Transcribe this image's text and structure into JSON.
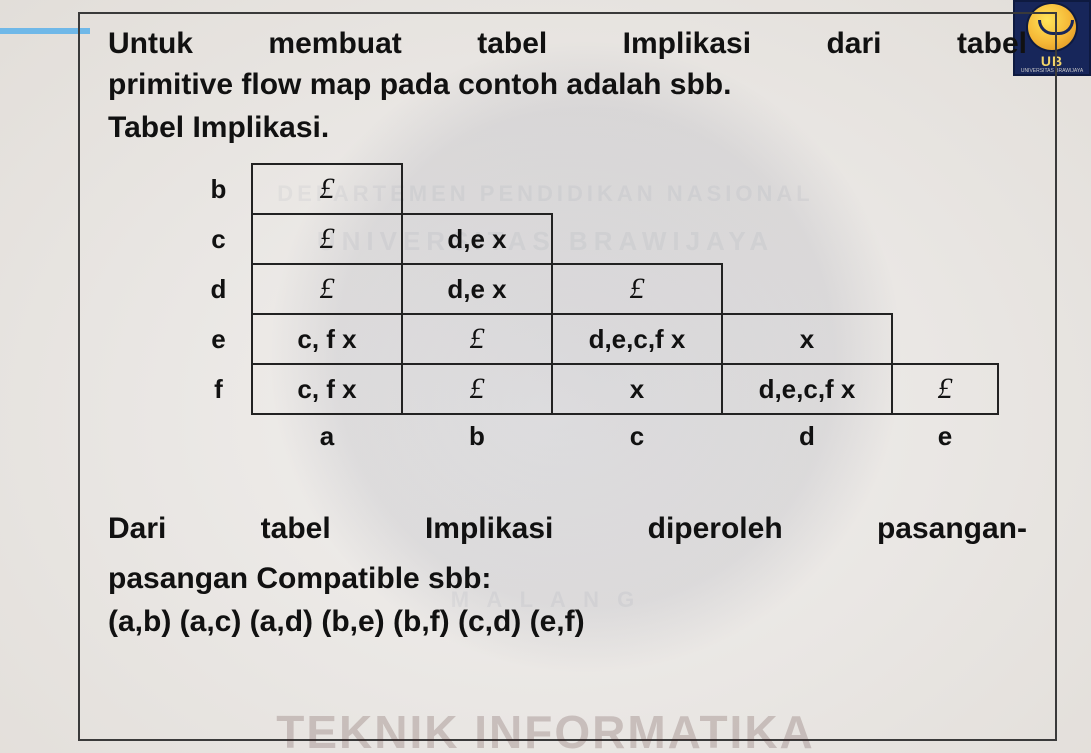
{
  "accent_color": "#6fb8e8",
  "border_color": "#3a3a3a",
  "heading": {
    "line1_words": [
      "Untuk",
      "membuat",
      "tabel",
      "Implikasi",
      "dari",
      "tabel"
    ],
    "line2": "primitive flow map pada contoh adalah sbb."
  },
  "subheading": "Tabel Implikasi.",
  "table": {
    "row_labels": [
      "b",
      "c",
      "d",
      "e",
      "f"
    ],
    "col_labels": [
      "a",
      "b",
      "c",
      "d",
      "e"
    ],
    "check_symbol": "£",
    "rows": [
      [
        {
          "type": "check"
        }
      ],
      [
        {
          "type": "check"
        },
        {
          "type": "text",
          "val": "d,e x"
        }
      ],
      [
        {
          "type": "check"
        },
        {
          "type": "text",
          "val": "d,e x"
        },
        {
          "type": "check"
        }
      ],
      [
        {
          "type": "text",
          "val": "c, f x"
        },
        {
          "type": "check"
        },
        {
          "type": "text",
          "val": "d,e,c,f x"
        },
        {
          "type": "text",
          "val": "x"
        }
      ],
      [
        {
          "type": "text",
          "val": "c, f x"
        },
        {
          "type": "check"
        },
        {
          "type": "text",
          "val": "x"
        },
        {
          "type": "text",
          "val": "d,e,c,f x"
        },
        {
          "type": "check"
        }
      ]
    ],
    "col_widths_class": [
      "w-a",
      "w-b",
      "w-c",
      "w-d",
      "w-e"
    ]
  },
  "paragraph": {
    "line1_words": [
      "Dari",
      "tabel",
      "Implikasi",
      "diperoleh",
      "pasangan-"
    ],
    "line2": "pasangan Compatible sbb:"
  },
  "pairs": "(a,b) (a,c) (a,d) (b,e) (b,f) (c,d) (e,f)",
  "footer_watermark": "TEKNIK INFORMATIKA",
  "logo": {
    "text": "UB",
    "sub": "UNIVERSITAS BRAWIJAYA",
    "bg": "#17265a"
  },
  "bg_watermark": {
    "line1": "DEPARTEMEN PENDIDIKAN NASIONAL",
    "line2": "UNIVERSITAS BRAWIJAYA",
    "line3": "M A L A N G"
  }
}
